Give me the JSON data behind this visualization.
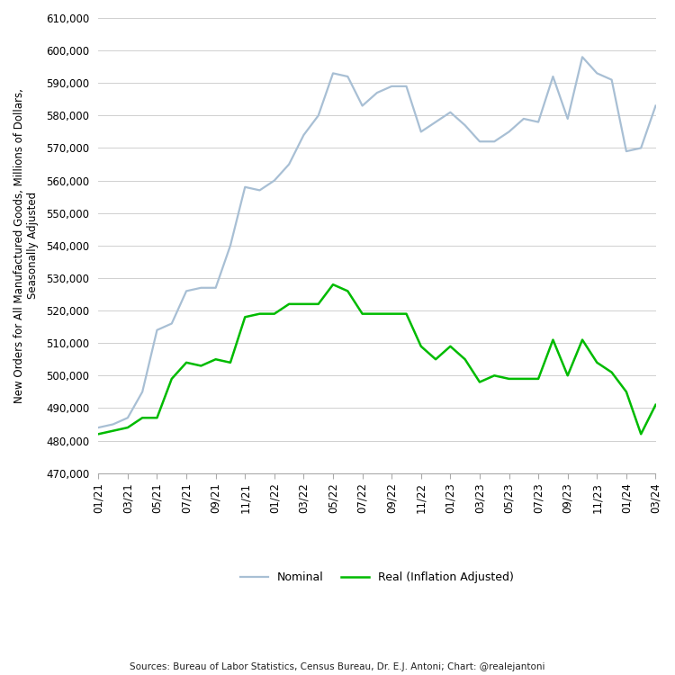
{
  "nominal_color": "#a8bfd4",
  "real_color": "#00bb00",
  "ylabel": "New Orders for All Manufactured Goods, Millions of Dollars,\nSeasonally Adjusted",
  "ylim_min": 470000,
  "ylim_max": 610000,
  "ytick_step": 10000,
  "legend_nominal": "Nominal",
  "legend_real": "Real (Inflation Adjusted)",
  "source_text": "Sources: Bureau of Labor Statistics, Census Bureau, Dr. E.J. Antoni; Chart: @realejantoni",
  "background_color": "#ffffff",
  "grid_color": "#d0d0d0",
  "tick_labels": [
    "01/21",
    "03/21",
    "05/21",
    "07/21",
    "09/21",
    "11/21",
    "01/22",
    "03/22",
    "05/22",
    "07/22",
    "09/22",
    "11/22",
    "01/23",
    "03/23",
    "05/23",
    "07/23",
    "09/23",
    "11/23",
    "01/24",
    "03/24"
  ],
  "nominal_values": [
    484000,
    485000,
    487000,
    495000,
    514000,
    516000,
    526000,
    527000,
    527000,
    540000,
    558000,
    557000,
    560000,
    565000,
    574000,
    580000,
    593000,
    592000,
    583000,
    587000,
    589000,
    589000,
    575000,
    578000,
    581000,
    577000,
    572000,
    572000,
    575000,
    579000,
    578000,
    592000,
    579000,
    598000,
    593000,
    591000,
    569000,
    570000,
    583000
  ],
  "real_values": [
    482000,
    483000,
    484000,
    487000,
    487000,
    499000,
    504000,
    503000,
    505000,
    504000,
    518000,
    519000,
    519000,
    522000,
    522000,
    522000,
    528000,
    526000,
    519000,
    519000,
    519000,
    519000,
    509000,
    505000,
    509000,
    505000,
    498000,
    500000,
    499000,
    499000,
    499000,
    511000,
    500000,
    511000,
    504000,
    501000,
    495000,
    482000,
    491000
  ]
}
